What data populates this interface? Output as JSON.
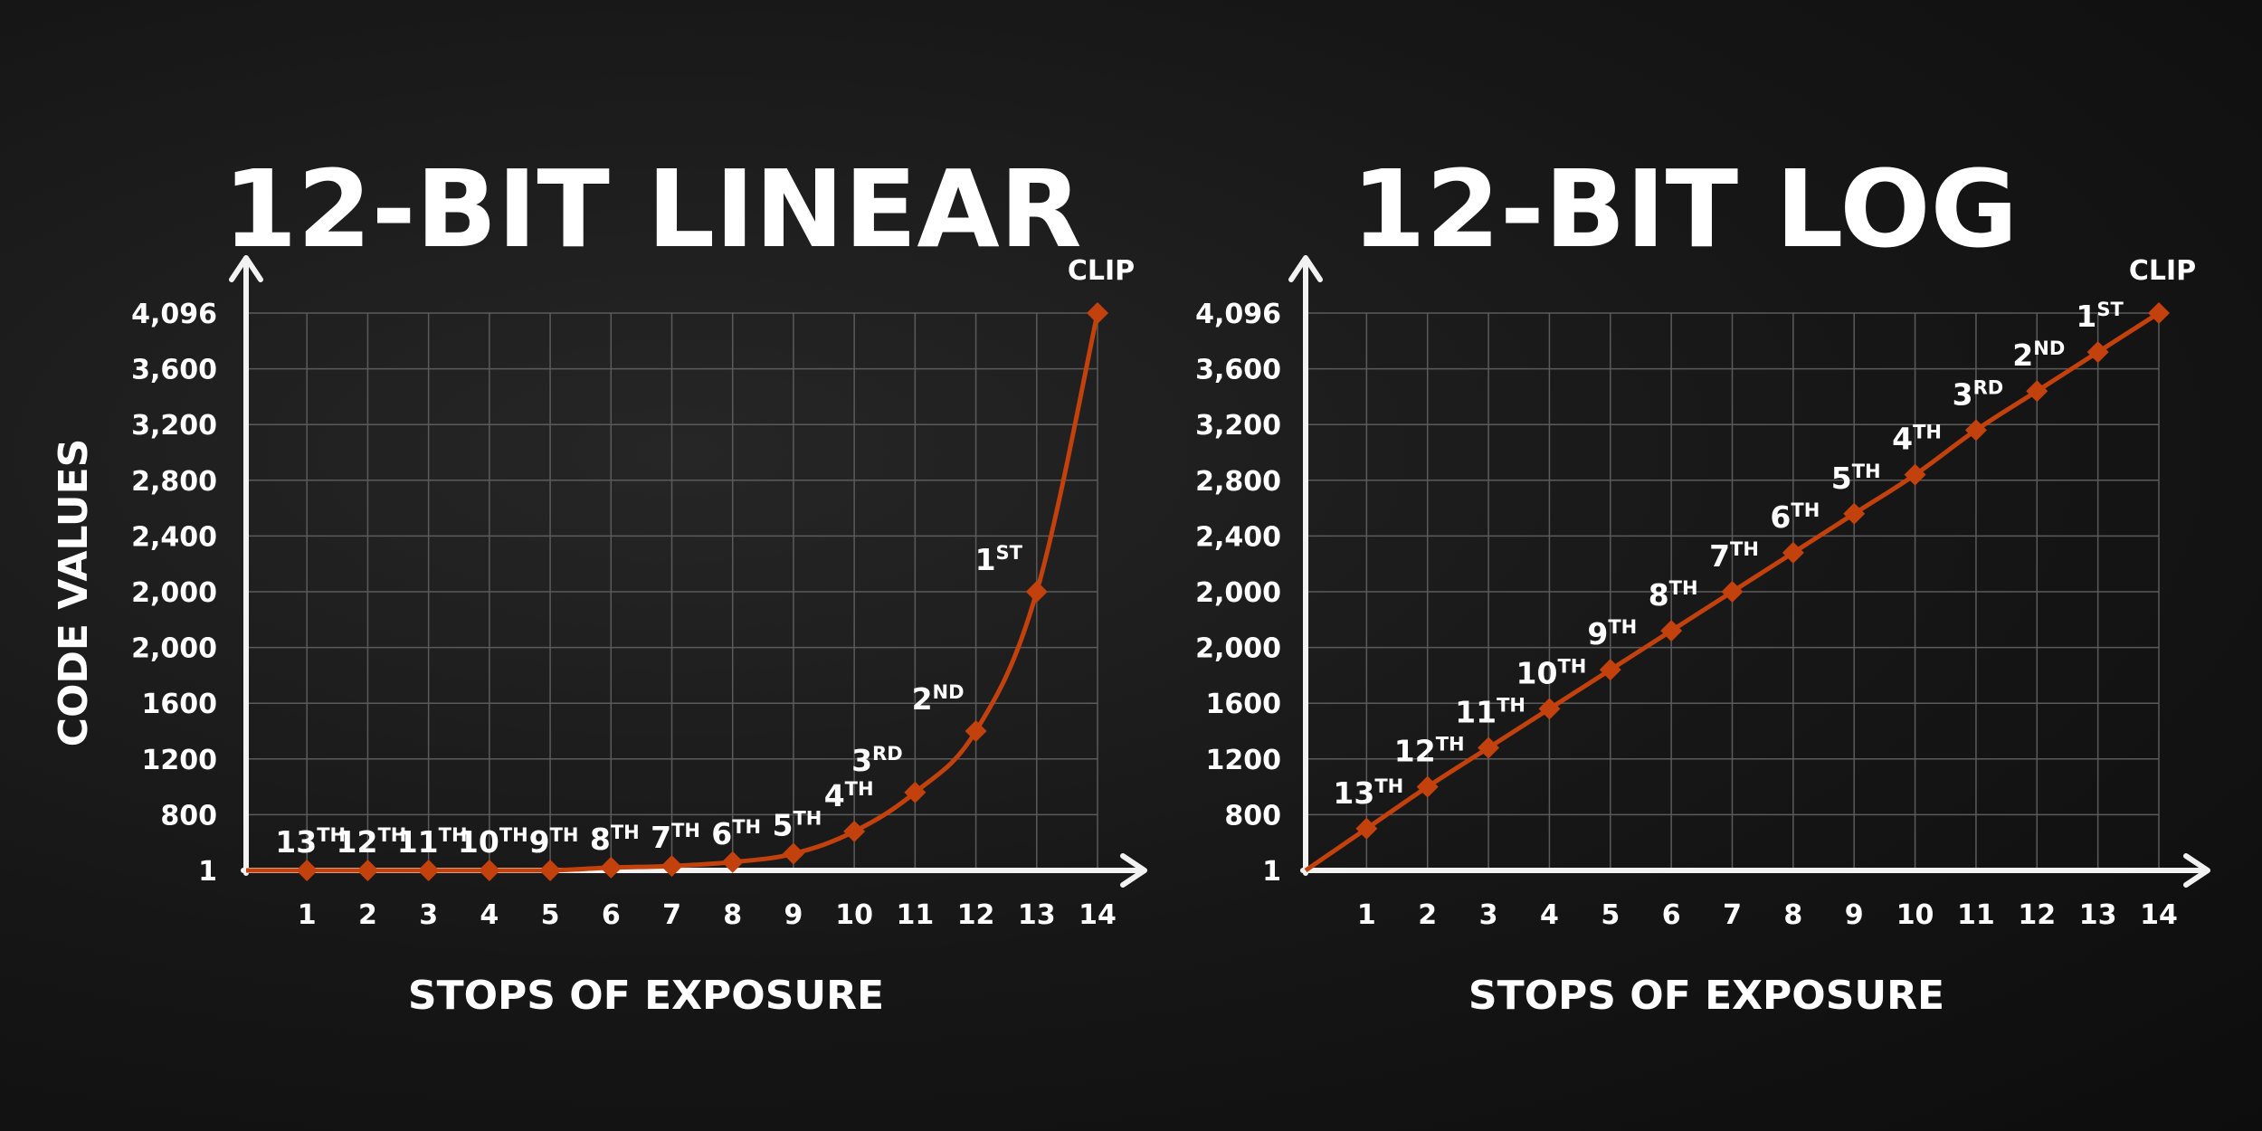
{
  "shared": {
    "ylabel": "CODE VALUES"
  },
  "chart_data": [
    {
      "type": "line",
      "title": "12-BIT LINEAR",
      "xlabel": "STOPS OF EXPOSURE",
      "ylabel": "CODE VALUES",
      "x_ticks": [
        "1",
        "2",
        "3",
        "4",
        "5",
        "6",
        "7",
        "8",
        "9",
        "10",
        "11",
        "12",
        "13",
        "14"
      ],
      "y_ticks": [
        "1",
        "800",
        "1200",
        "1600",
        "2,000",
        "2,000",
        "2,400",
        "2,800",
        "3,200",
        "3,600",
        "4,096"
      ],
      "grid": true,
      "line_color": "#c2410c",
      "start": {
        "x": 0,
        "y_level": 0
      },
      "points": [
        {
          "x": 1,
          "y_level": 0.0,
          "label": "13",
          "suffix": "TH"
        },
        {
          "x": 2,
          "y_level": 0.0,
          "label": "12",
          "suffix": "TH"
        },
        {
          "x": 3,
          "y_level": 0.0,
          "label": "11",
          "suffix": "TH"
        },
        {
          "x": 4,
          "y_level": 0.0,
          "label": "10",
          "suffix": "TH"
        },
        {
          "x": 5,
          "y_level": 0.0,
          "label": "9",
          "suffix": "TH"
        },
        {
          "x": 6,
          "y_level": 0.05,
          "label": "8",
          "suffix": "TH"
        },
        {
          "x": 7,
          "y_level": 0.08,
          "label": "7",
          "suffix": "TH"
        },
        {
          "x": 8,
          "y_level": 0.15,
          "label": "6",
          "suffix": "TH"
        },
        {
          "x": 9,
          "y_level": 0.3,
          "label": "5",
          "suffix": "TH"
        },
        {
          "x": 10,
          "y_level": 0.7,
          "label": "4",
          "suffix": "TH"
        },
        {
          "x": 11,
          "y_level": 1.4,
          "label": "3",
          "suffix": "RD"
        },
        {
          "x": 12,
          "y_level": 2.5,
          "label": "2",
          "suffix": "ND"
        },
        {
          "x": 13,
          "y_level": 5.0,
          "label": "1",
          "suffix": "ST"
        },
        {
          "x": 14,
          "y_level": 10.0,
          "label": "CLIP",
          "suffix": ""
        }
      ]
    },
    {
      "type": "line",
      "title": "12-BIT LOG",
      "xlabel": "STOPS OF EXPOSURE",
      "ylabel": "",
      "x_ticks": [
        "1",
        "2",
        "3",
        "4",
        "5",
        "6",
        "7",
        "8",
        "9",
        "10",
        "11",
        "12",
        "13",
        "14"
      ],
      "y_ticks": [
        "1",
        "800",
        "1200",
        "1600",
        "2,000",
        "2,000",
        "2,400",
        "2,800",
        "3,200",
        "3,600",
        "4,096"
      ],
      "grid": true,
      "line_color": "#c2410c",
      "start": {
        "x": 0,
        "y_level": 0
      },
      "points": [
        {
          "x": 1,
          "y_level": 0.75,
          "label": "13",
          "suffix": "TH"
        },
        {
          "x": 2,
          "y_level": 1.5,
          "label": "12",
          "suffix": "TH"
        },
        {
          "x": 3,
          "y_level": 2.2,
          "label": "11",
          "suffix": "TH"
        },
        {
          "x": 4,
          "y_level": 2.9,
          "label": "10",
          "suffix": "TH"
        },
        {
          "x": 5,
          "y_level": 3.6,
          "label": "9",
          "suffix": "TH"
        },
        {
          "x": 6,
          "y_level": 4.3,
          "label": "8",
          "suffix": "TH"
        },
        {
          "x": 7,
          "y_level": 5.0,
          "label": "7",
          "suffix": "TH"
        },
        {
          "x": 8,
          "y_level": 5.7,
          "label": "6",
          "suffix": "TH"
        },
        {
          "x": 9,
          "y_level": 6.4,
          "label": "5",
          "suffix": "TH"
        },
        {
          "x": 10,
          "y_level": 7.1,
          "label": "4",
          "suffix": "TH"
        },
        {
          "x": 11,
          "y_level": 7.9,
          "label": "3",
          "suffix": "RD"
        },
        {
          "x": 12,
          "y_level": 8.6,
          "label": "2",
          "suffix": "ND"
        },
        {
          "x": 13,
          "y_level": 9.3,
          "label": "1",
          "suffix": "ST"
        },
        {
          "x": 14,
          "y_level": 10.0,
          "label": "CLIP",
          "suffix": ""
        }
      ]
    }
  ]
}
